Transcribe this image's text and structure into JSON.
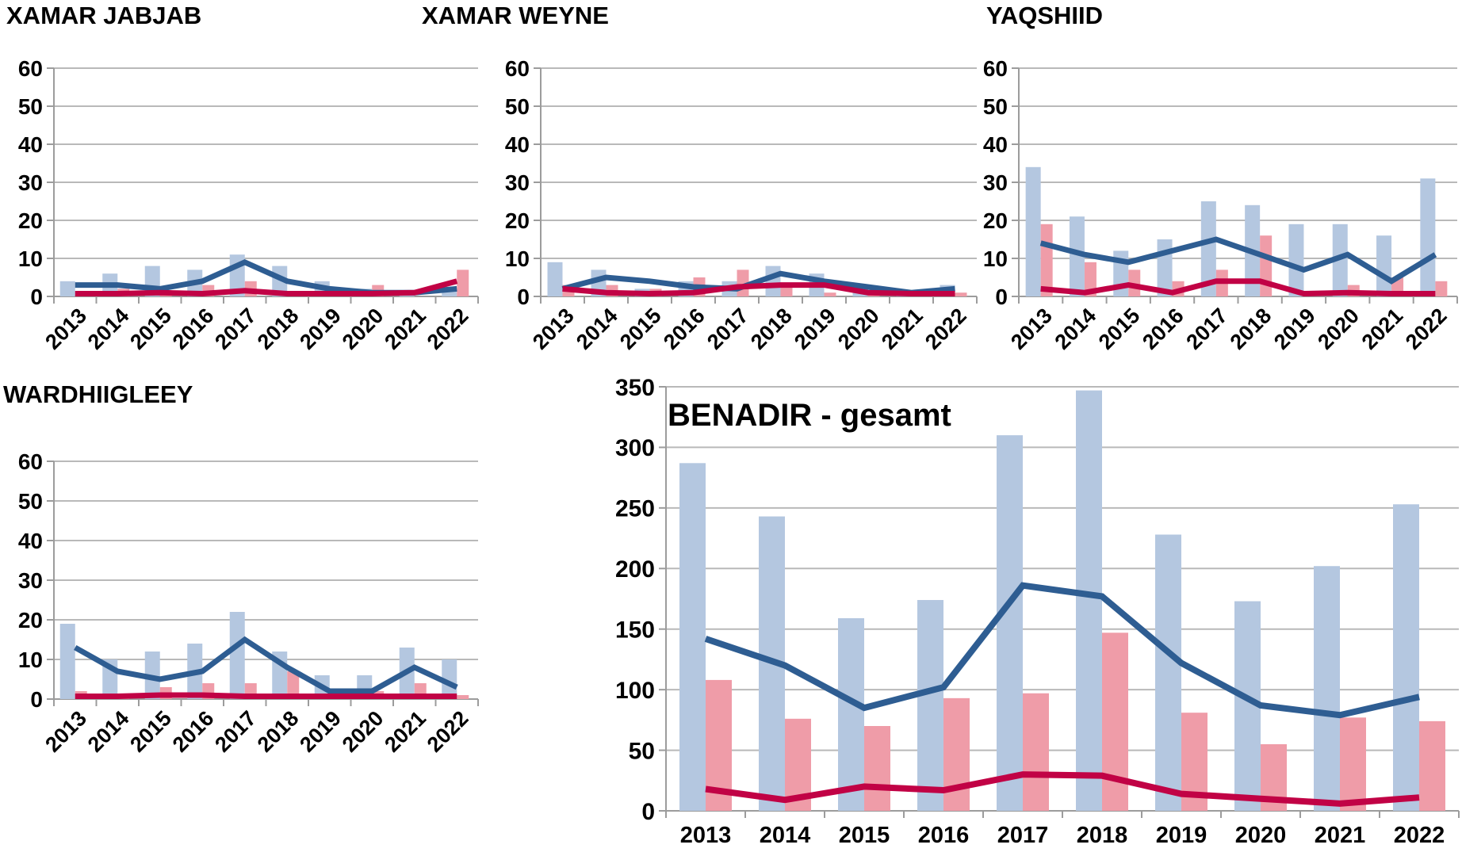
{
  "colors": {
    "bar_blue": "#B4C7E0",
    "bar_pink": "#EF9CA8",
    "line_blue": "#2E5D92",
    "line_red": "#C10245",
    "gridline": "#B9B9B9",
    "axis": "#9C9C9C",
    "text": "#000000",
    "background": "#FFFFFF"
  },
  "chart_data": [
    {
      "id": "xamar-jabjab",
      "type": "bar",
      "title": "XAMAR JABJAB",
      "categories": [
        "2013",
        "2014",
        "2015",
        "2016",
        "2017",
        "2018",
        "2019",
        "2020",
        "2021",
        "2022"
      ],
      "ylim": [
        0,
        60
      ],
      "ytick_step": 10,
      "grid": true,
      "legend": "none",
      "series": [
        {
          "name": "blue-bars",
          "kind": "bar",
          "color_key": "bar_blue",
          "values": [
            4,
            6,
            8,
            7,
            11,
            8,
            4,
            2,
            1,
            2
          ]
        },
        {
          "name": "pink-bars",
          "kind": "bar",
          "color_key": "bar_pink",
          "values": [
            0,
            2,
            1,
            3,
            4,
            0,
            0,
            3,
            0,
            7
          ]
        },
        {
          "name": "blue-line",
          "kind": "line",
          "color_key": "line_blue",
          "values": [
            3,
            3,
            2,
            4,
            9,
            4,
            2,
            1,
            1,
            2
          ]
        },
        {
          "name": "red-line",
          "kind": "line",
          "color_key": "line_red",
          "values": [
            0,
            0,
            1,
            0,
            1.5,
            0,
            0,
            0,
            1,
            4
          ]
        }
      ]
    },
    {
      "id": "xamar-weyne",
      "type": "bar",
      "title": "XAMAR WEYNE",
      "categories": [
        "2013",
        "2014",
        "2015",
        "2016",
        "2017",
        "2018",
        "2019",
        "2020",
        "2021",
        "2022"
      ],
      "ylim": [
        0,
        60
      ],
      "ytick_step": 10,
      "grid": true,
      "legend": "none",
      "series": [
        {
          "name": "blue-bars",
          "kind": "bar",
          "color_key": "bar_blue",
          "values": [
            9,
            7,
            2,
            4,
            4,
            8,
            6,
            2,
            1,
            3
          ]
        },
        {
          "name": "pink-bars",
          "kind": "bar",
          "color_key": "bar_pink",
          "values": [
            3,
            3,
            2,
            5,
            7,
            3,
            1,
            1,
            0,
            1
          ]
        },
        {
          "name": "blue-line",
          "kind": "line",
          "color_key": "line_blue",
          "values": [
            2,
            5,
            4,
            2.5,
            2,
            6,
            4,
            2.5,
            1,
            2
          ]
        },
        {
          "name": "red-line",
          "kind": "line",
          "color_key": "line_red",
          "values": [
            2,
            1,
            0,
            1,
            2.5,
            3,
            3,
            1,
            0.5,
            0.5
          ]
        }
      ]
    },
    {
      "id": "yaqshiid",
      "type": "bar",
      "title": "YAQSHIID",
      "categories": [
        "2013",
        "2014",
        "2015",
        "2016",
        "2017",
        "2018",
        "2019",
        "2020",
        "2021",
        "2022"
      ],
      "ylim": [
        0,
        60
      ],
      "ytick_step": 10,
      "grid": true,
      "legend": "none",
      "series": [
        {
          "name": "blue-bars",
          "kind": "bar",
          "color_key": "bar_blue",
          "values": [
            34,
            21,
            12,
            15,
            25,
            24,
            19,
            19,
            16,
            31
          ]
        },
        {
          "name": "pink-bars",
          "kind": "bar",
          "color_key": "bar_pink",
          "values": [
            19,
            9,
            7,
            4,
            7,
            16,
            0,
            3,
            5,
            4
          ]
        },
        {
          "name": "blue-line",
          "kind": "line",
          "color_key": "line_blue",
          "values": [
            14,
            11,
            9,
            12,
            15,
            11,
            7,
            11,
            4,
            11
          ]
        },
        {
          "name": "red-line",
          "kind": "line",
          "color_key": "line_red",
          "values": [
            2,
            1,
            3,
            1,
            4,
            4,
            0,
            1,
            0,
            0
          ]
        }
      ]
    },
    {
      "id": "wardhiigleey",
      "type": "bar",
      "title": "WARDHIIGLEEY",
      "categories": [
        "2013",
        "2014",
        "2015",
        "2016",
        "2017",
        "2018",
        "2019",
        "2020",
        "2021",
        "2022"
      ],
      "ylim": [
        0,
        60
      ],
      "ytick_step": 10,
      "grid": true,
      "legend": "none",
      "series": [
        {
          "name": "blue-bars",
          "kind": "bar",
          "color_key": "bar_blue",
          "values": [
            19,
            10,
            12,
            14,
            22,
            12,
            6,
            6,
            13,
            10
          ]
        },
        {
          "name": "pink-bars",
          "kind": "bar",
          "color_key": "bar_pink",
          "values": [
            2,
            1,
            3,
            4,
            4,
            7,
            0,
            2,
            4,
            1
          ]
        },
        {
          "name": "blue-line",
          "kind": "line",
          "color_key": "line_blue",
          "values": [
            13,
            7,
            5,
            7,
            15,
            8,
            2,
            2,
            8,
            3
          ]
        },
        {
          "name": "red-line",
          "kind": "line",
          "color_key": "line_red",
          "values": [
            0,
            0,
            1,
            1,
            0,
            0,
            0,
            0,
            0,
            0
          ]
        }
      ]
    },
    {
      "id": "benadir-gesamt",
      "type": "bar",
      "title": "BENADIR - gesamt",
      "categories": [
        "2013",
        "2014",
        "2015",
        "2016",
        "2017",
        "2018",
        "2019",
        "2020",
        "2021",
        "2022"
      ],
      "ylim": [
        0,
        350
      ],
      "ytick_step": 50,
      "grid": true,
      "legend": "none",
      "series": [
        {
          "name": "blue-bars",
          "kind": "bar",
          "color_key": "bar_blue",
          "values": [
            287,
            243,
            159,
            174,
            310,
            347,
            228,
            173,
            202,
            253
          ]
        },
        {
          "name": "pink-bars",
          "kind": "bar",
          "color_key": "bar_pink",
          "values": [
            108,
            76,
            70,
            93,
            97,
            147,
            81,
            55,
            77,
            74
          ]
        },
        {
          "name": "blue-line",
          "kind": "line",
          "color_key": "line_blue",
          "values": [
            142,
            120,
            85,
            102,
            186,
            177,
            122,
            87,
            79,
            94
          ]
        },
        {
          "name": "red-line",
          "kind": "line",
          "color_key": "line_red",
          "values": [
            18,
            9,
            20,
            17,
            30,
            29,
            14,
            10,
            6,
            11
          ]
        }
      ]
    }
  ]
}
